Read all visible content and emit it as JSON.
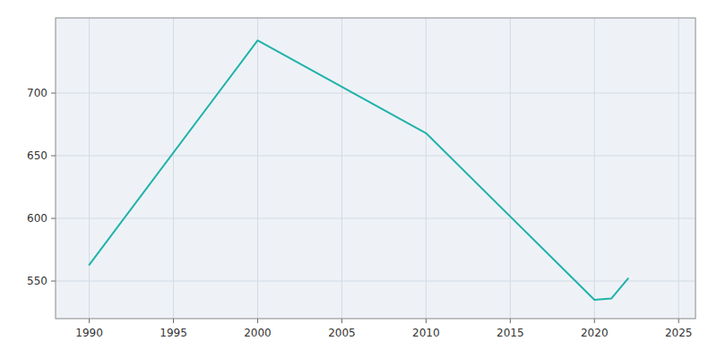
{
  "chart_data": {
    "type": "line",
    "x": [
      1990,
      2000,
      2010,
      2020,
      2021,
      2022
    ],
    "values": [
      563,
      742,
      668,
      535,
      536,
      552
    ],
    "color": "#20B2AA",
    "xlim": [
      1988,
      2026
    ],
    "ylim": [
      520,
      760
    ],
    "xticks": [
      1990,
      1995,
      2000,
      2005,
      2010,
      2015,
      2020,
      2025
    ],
    "yticks": [
      550,
      600,
      650,
      700
    ],
    "grid": true
  }
}
